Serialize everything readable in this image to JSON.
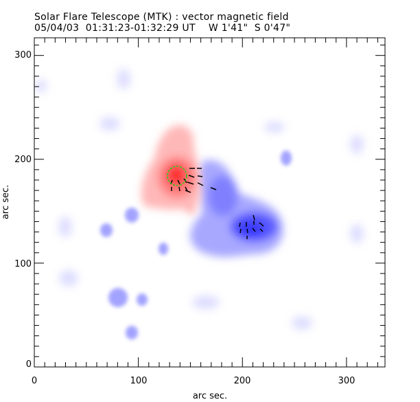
{
  "chart_data": {
    "type": "heatmap",
    "title": "Solar Flare Telescope (MTK) : vector magnetic field",
    "subtitle": "05/04/03  01:31:23-01:32:29 UT    W 1'41\"  S 0'47\"",
    "xlabel": "arc sec.",
    "ylabel": "arc sec.",
    "xlim": [
      0,
      337
    ],
    "ylim": [
      0,
      317
    ],
    "xticks": [
      "0",
      "100",
      "200",
      "300"
    ],
    "yticks": [
      "0",
      "100",
      "200",
      "300"
    ],
    "colors": {
      "positive": "#ff3030",
      "negative": "#3a3aff",
      "marker": "#00dd00"
    }
  }
}
